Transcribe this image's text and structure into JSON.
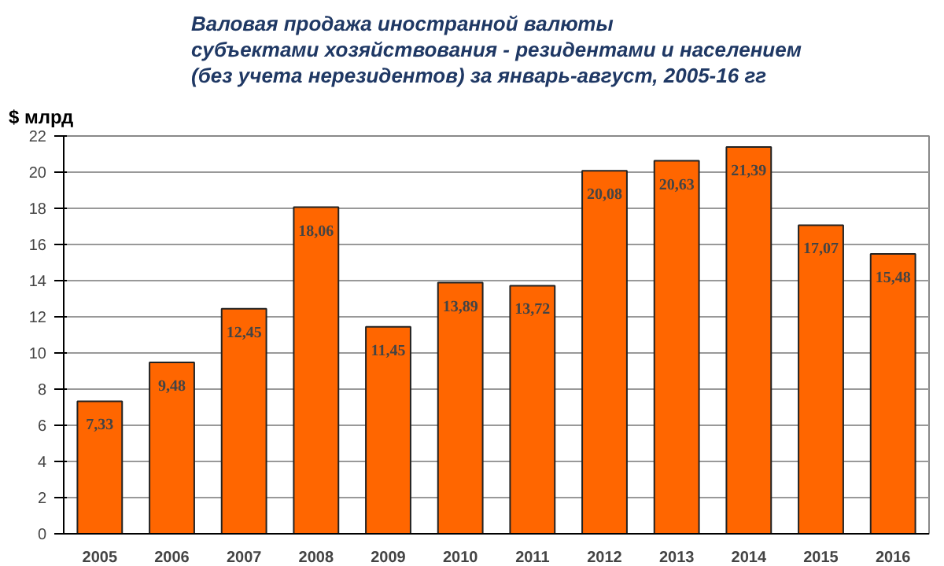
{
  "chart_data": {
    "type": "bar",
    "title": "Валовая продажа иностранной валюты\nсубъектами хозяйствования - резидентами и населением\n(без учета нерезидентов) за январь-август, 2005-16 гг",
    "ylabel": "$ млрд",
    "categories": [
      "2005",
      "2006",
      "2007",
      "2008",
      "2009",
      "2010",
      "2011",
      "2012",
      "2013",
      "2014",
      "2015",
      "2016"
    ],
    "values": [
      7.33,
      9.48,
      12.45,
      18.06,
      11.45,
      13.89,
      13.72,
      20.08,
      20.63,
      21.39,
      17.07,
      15.48
    ],
    "value_labels": [
      "7,33",
      "9,48",
      "12,45",
      "18,06",
      "11,45",
      "13,89",
      "13,72",
      "20,08",
      "20,63",
      "21,39",
      "17,07",
      "15,48"
    ],
    "color": "#ff6600",
    "ylim": [
      0,
      22
    ],
    "yticks": [
      0,
      2,
      4,
      6,
      8,
      10,
      12,
      14,
      16,
      18,
      20,
      22
    ],
    "grid": "y"
  }
}
